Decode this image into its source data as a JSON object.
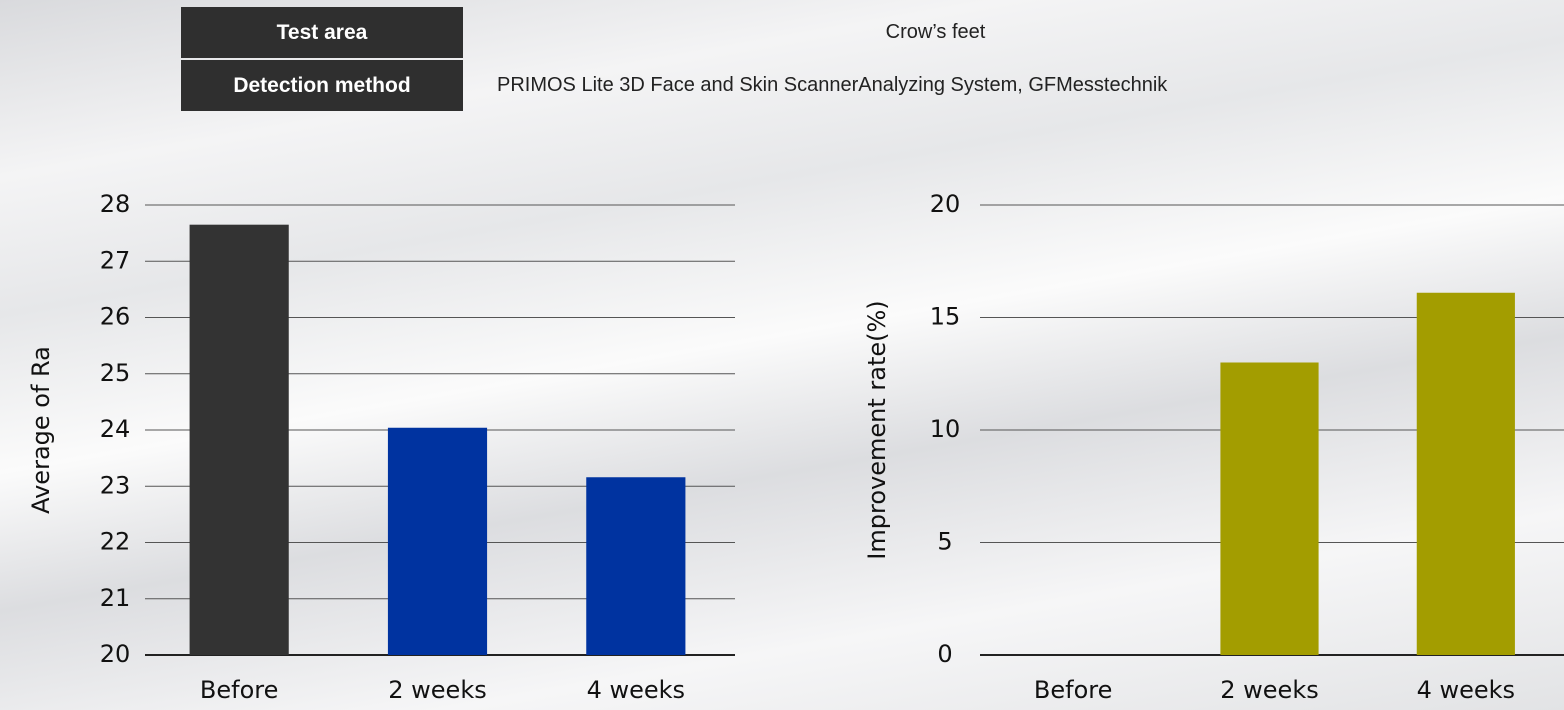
{
  "table": {
    "rows": [
      [
        "Test area",
        "Crow’s feet"
      ],
      [
        "Detection method",
        "PRIMOS Lite 3D Face and Skin ScannerAnalyzing System, GFMesstechnik"
      ]
    ]
  },
  "chart_data": [
    {
      "type": "bar",
      "y_label": "Average of Ra",
      "categories": [
        "Before",
        "2 weeks",
        "4 weeks"
      ],
      "values": [
        27.65,
        24.04,
        23.16
      ],
      "colors": [
        "#333333",
        "#0033a0",
        "#0033a0"
      ],
      "ylim": [
        20,
        28
      ],
      "yticks": [
        20,
        21,
        22,
        23,
        24,
        25,
        26,
        27,
        28
      ],
      "grid": true
    },
    {
      "type": "bar",
      "y_label": "Improvement rate(%)",
      "categories": [
        "Before",
        "2 weeks",
        "4 weeks"
      ],
      "values": [
        0,
        13.0,
        16.1
      ],
      "colors": [
        "#a39d00",
        "#a39d00",
        "#a39d00"
      ],
      "ylim": [
        0,
        20
      ],
      "yticks": [
        0,
        5,
        10,
        15,
        20
      ],
      "grid": true
    }
  ]
}
